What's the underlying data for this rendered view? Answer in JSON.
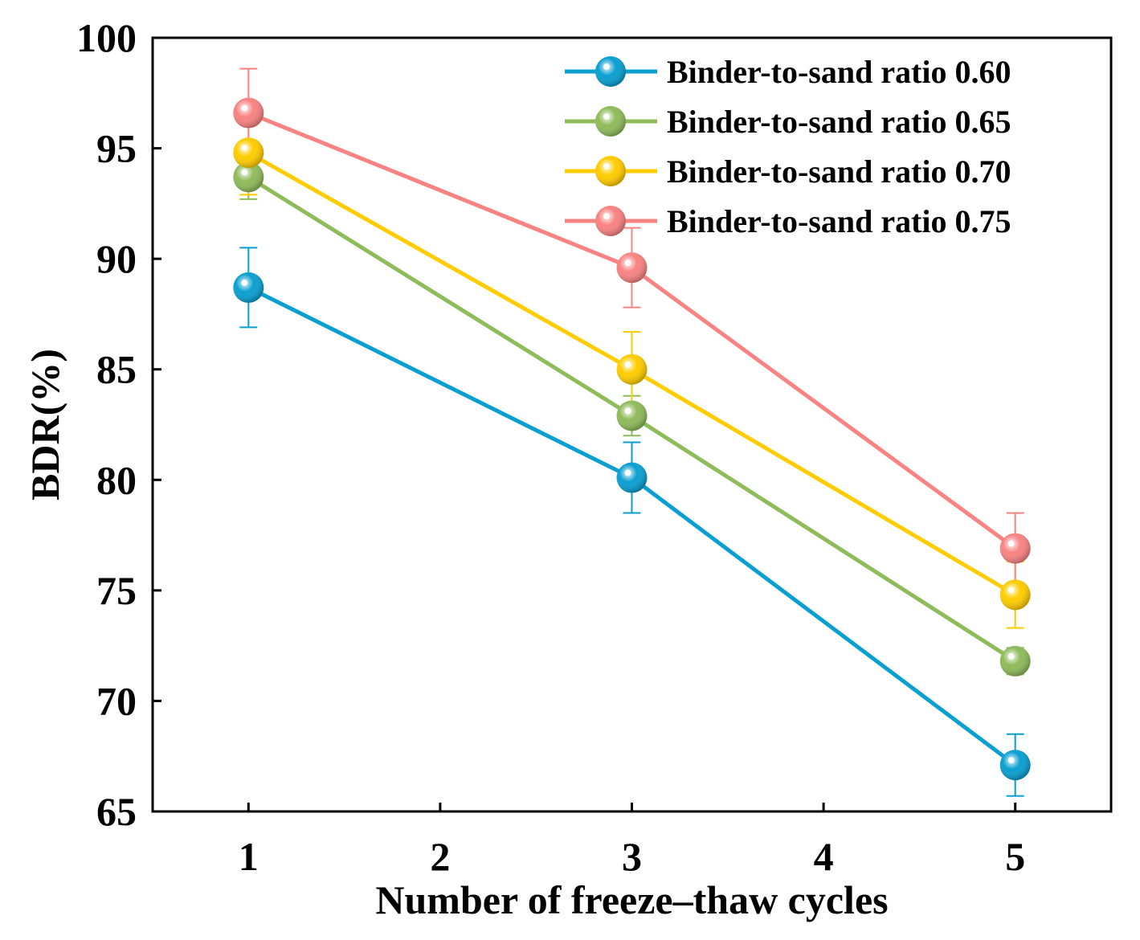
{
  "chart_data": {
    "type": "line",
    "title": "",
    "xlabel": "Number of freeze–thaw cycles",
    "ylabel": "BDR(%)",
    "xlim": [
      0.5,
      5.5
    ],
    "ylim": [
      65,
      100
    ],
    "xticks": [
      1,
      2,
      3,
      4,
      5
    ],
    "yticks": [
      65,
      70,
      75,
      80,
      85,
      90,
      95,
      100
    ],
    "grid": false,
    "legend_position": "top-right",
    "x": [
      1,
      3,
      5
    ],
    "series": [
      {
        "name": "Binder-to-sand ratio 0.60",
        "color": "#0a9fd1",
        "values": [
          88.7,
          80.1,
          67.1
        ],
        "errors": [
          1.8,
          1.6,
          1.4
        ]
      },
      {
        "name": "Binder-to-sand ratio 0.65",
        "color": "#8fbb5a",
        "values": [
          93.7,
          82.9,
          71.8
        ],
        "errors": [
          1.0,
          0.9,
          0.6
        ]
      },
      {
        "name": "Binder-to-sand ratio 0.70",
        "color": "#ffcc00",
        "values": [
          94.8,
          85.0,
          74.8
        ],
        "errors": [
          1.9,
          1.7,
          1.5
        ]
      },
      {
        "name": "Binder-to-sand ratio 0.75",
        "color": "#f88382",
        "values": [
          96.6,
          89.6,
          76.9
        ],
        "errors": [
          2.0,
          1.8,
          1.6
        ]
      }
    ]
  }
}
